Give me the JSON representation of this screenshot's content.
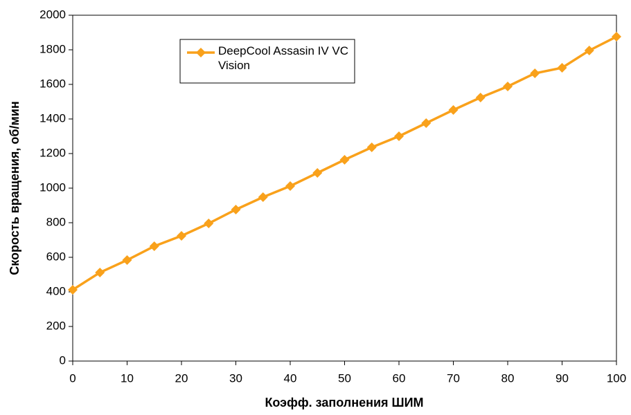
{
  "chart_data": {
    "type": "line",
    "x_label": "Коэфф. заполнения ШИМ",
    "y_label": "Скорость вращения, об/мин",
    "x": [
      0,
      5,
      10,
      15,
      20,
      25,
      30,
      35,
      40,
      45,
      50,
      55,
      60,
      65,
      70,
      75,
      80,
      85,
      90,
      95,
      100
    ],
    "series": [
      {
        "name": "DeepCool Assasin IV VC Vision",
        "color": "#f9a11b",
        "values": [
          412,
          512,
          584,
          664,
          724,
          796,
          876,
          948,
          1012,
          1088,
          1164,
          1236,
          1300,
          1376,
          1452,
          1524,
          1588,
          1664,
          1696,
          1796,
          1876
        ]
      }
    ],
    "xlim": [
      0,
      100
    ],
    "xticks": [
      0,
      10,
      20,
      30,
      40,
      50,
      60,
      70,
      80,
      90,
      100
    ],
    "ylim": [
      0,
      2000
    ],
    "yticks": [
      0,
      200,
      400,
      600,
      800,
      1000,
      1200,
      1400,
      1600,
      1800,
      2000
    ],
    "grid": false,
    "legend": "upper left"
  }
}
